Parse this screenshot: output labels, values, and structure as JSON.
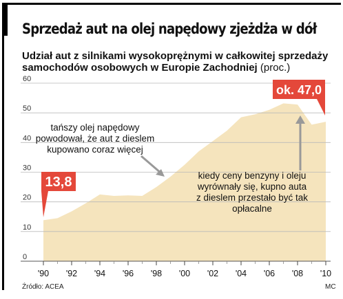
{
  "title": "Sprzedaż aut na olej napędowy zjeżdża w dół",
  "subtitle": "Udział aut z silnikami wysokoprężnymi w całkowitej sprzedaży samochodów osobowych w Europie Zachodniej",
  "unit": "(proc.)",
  "source": "Źródło: ACEA",
  "credit": "MC",
  "colors": {
    "area": "#f5e4bd",
    "callout": "#e4483a",
    "grid": "#b9b9b9",
    "text": "#111111"
  },
  "annotations": {
    "left_note": [
      "tańszy olej napędowy",
      "powodował, że aut z dieslem",
      "kupowano coraz więcej"
    ],
    "right_note": [
      "kiedy ceny benzyny i oleju",
      "wyrównały się, kupno auta",
      "z dieslem przestało być tak",
      "opłacalne"
    ]
  },
  "callouts": {
    "start": "13,8",
    "end": "ok. 47,0"
  },
  "chart_data": {
    "type": "area",
    "x": [
      1990,
      1991,
      1992,
      1993,
      1994,
      1995,
      1996,
      1997,
      1998,
      1999,
      2000,
      2001,
      2002,
      2003,
      2004,
      2005,
      2006,
      2007,
      2008,
      2009,
      2010
    ],
    "values": [
      13.8,
      14.5,
      16.8,
      19.5,
      22.5,
      22.0,
      22.2,
      22.0,
      25.0,
      28.5,
      32.5,
      37.0,
      40.5,
      44.0,
      48.5,
      49.5,
      51.0,
      53.2,
      52.8,
      46.0,
      47.0
    ],
    "xticks": [
      "'90",
      "'92",
      "'94",
      "'96",
      "'98",
      "'00",
      "'02",
      "'04",
      "'06",
      "'08",
      "'10"
    ],
    "yticks": [
      0,
      10,
      20,
      30,
      40,
      50,
      60
    ],
    "ylim": [
      0,
      60
    ],
    "xlim": [
      1990,
      2010
    ],
    "grid": true
  }
}
